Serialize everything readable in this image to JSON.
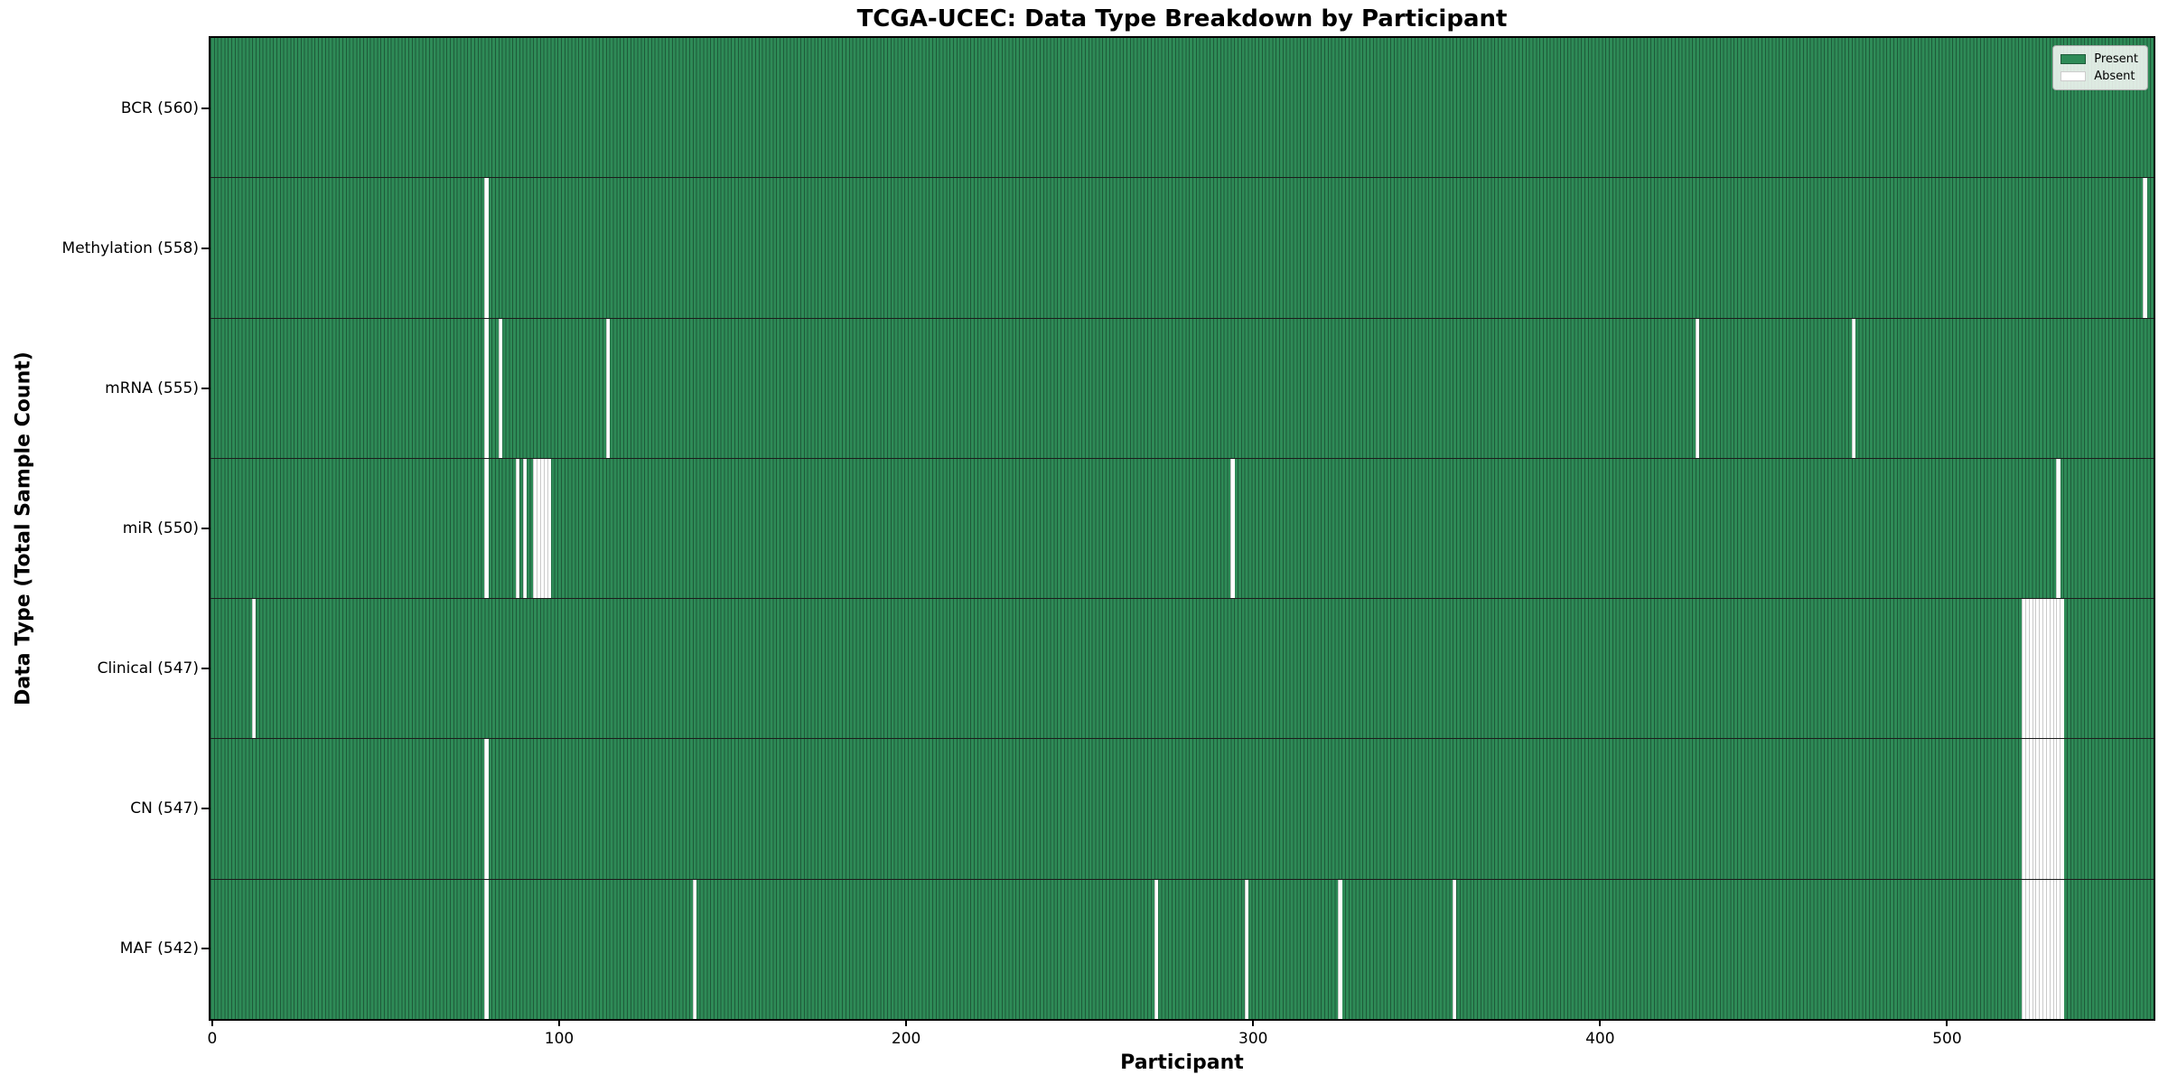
{
  "title": "TCGA-UCEC: Data Type Breakdown by Participant",
  "xlabel": "Participant",
  "ylabel": "Data Type (Total Sample Count)",
  "legend": {
    "present_label": "Present",
    "absent_label": "Absent"
  },
  "colors": {
    "present": "#2e8b57",
    "present_edge": "#1e5a39",
    "absent": "#ffffff",
    "absent_edge": "#c9c9c9"
  },
  "chart_data": {
    "type": "heatmap",
    "title": "TCGA-UCEC: Data Type Breakdown by Participant",
    "xlabel": "Participant",
    "ylabel": "Data Type (Total Sample Count)",
    "legend_entries": [
      "Present",
      "Absent"
    ],
    "legend_position": "upper right",
    "n_participants": 560,
    "x_tick_values": [
      0,
      100,
      200,
      300,
      400,
      500
    ],
    "x_range": [
      0,
      560
    ],
    "value_encoding": {
      "present": "#2e8b57",
      "absent": "#ffffff"
    },
    "rows": [
      {
        "data_type": "BCR",
        "label": "BCR (560)",
        "total": 560,
        "absent": []
      },
      {
        "data_type": "Methylation",
        "label": "Methylation (558)",
        "total": 558,
        "absent": [
          79,
          557
        ]
      },
      {
        "data_type": "mRNA",
        "label": "mRNA (555)",
        "total": 555,
        "absent": [
          79,
          83,
          114,
          428,
          473
        ]
      },
      {
        "data_type": "miR",
        "label": "miR (550)",
        "total": 550,
        "absent": [
          79,
          88,
          90,
          93,
          94,
          95,
          96,
          97,
          294,
          532
        ]
      },
      {
        "data_type": "Clinical",
        "label": "Clinical (547)",
        "total": 547,
        "absent": [
          12,
          522,
          523,
          524,
          525,
          526,
          527,
          528,
          529,
          530,
          531,
          532,
          533
        ]
      },
      {
        "data_type": "CN",
        "label": "CN (547)",
        "total": 547,
        "absent": [
          79,
          522,
          523,
          524,
          525,
          526,
          527,
          528,
          529,
          530,
          531,
          532,
          533
        ]
      },
      {
        "data_type": "MAF",
        "label": "MAF (542)",
        "total": 542,
        "absent": [
          79,
          139,
          272,
          298,
          325,
          358,
          522,
          523,
          524,
          525,
          526,
          527,
          528,
          529,
          530,
          531,
          532,
          533
        ]
      }
    ]
  }
}
